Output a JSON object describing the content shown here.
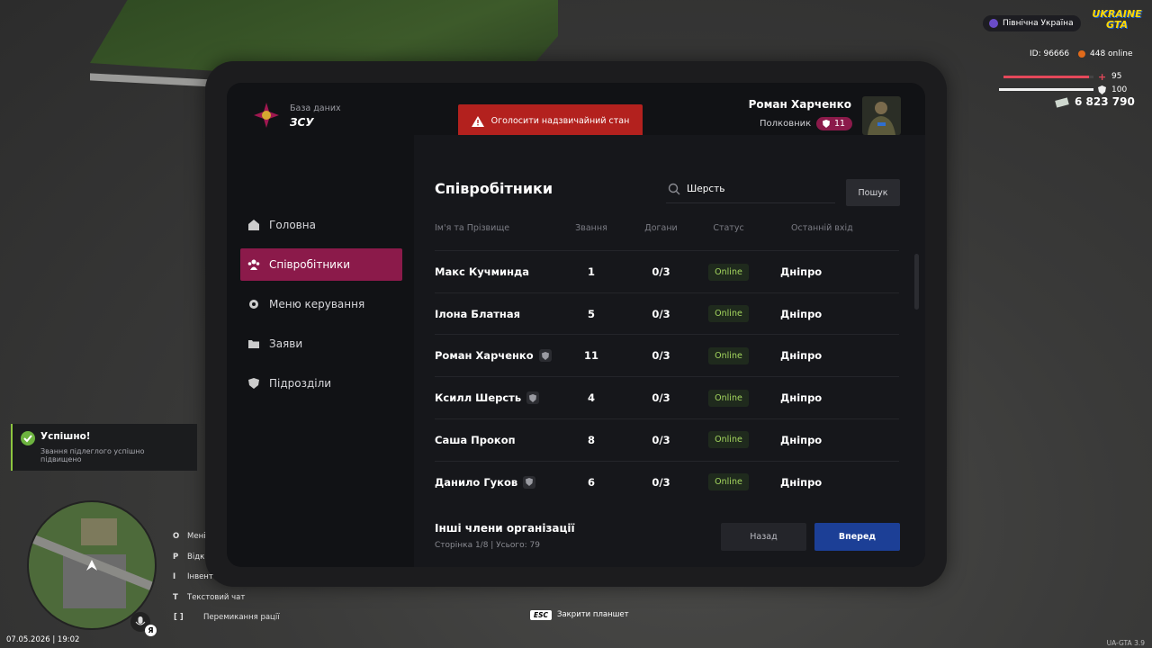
{
  "hud": {
    "region": "Північна Україна",
    "logo_top": "UKRAINE",
    "logo_bottom": "GTA",
    "player_id": "ID: 96666",
    "online": "448 online",
    "health": 95,
    "armor": 100,
    "money": "6 823 790"
  },
  "tablet": {
    "brand_subtitle": "База даних",
    "brand_title": "ЗСУ",
    "emergency_button": "Оголосити надзвичайний стан",
    "user_name": "Роман Харченко",
    "user_rank": "Полковник",
    "user_level": 11,
    "nav": [
      {
        "label": "Головна",
        "active": false
      },
      {
        "label": "Співробітники",
        "active": true
      },
      {
        "label": "Меню керування",
        "active": false
      },
      {
        "label": "Заяви",
        "active": false
      },
      {
        "label": "Підрозділи",
        "active": false
      }
    ],
    "content_title": "Співробітники",
    "search_value": "Шерсть",
    "search_button": "Пошук",
    "columns": [
      "Ім'я та Прізвище",
      "Звання",
      "Догани",
      "Статус",
      "Останній вхід"
    ],
    "rows": [
      {
        "name": "Макс Кучминда",
        "badge": false,
        "rank": 1,
        "reprimands": "0/3",
        "status": "Online",
        "last_login": "Дніпро"
      },
      {
        "name": "Ілона Блатная",
        "badge": false,
        "rank": 5,
        "reprimands": "0/3",
        "status": "Online",
        "last_login": "Дніпро"
      },
      {
        "name": "Роман Харченко",
        "badge": true,
        "rank": 11,
        "reprimands": "0/3",
        "status": "Online",
        "last_login": "Дніпро"
      },
      {
        "name": "Ксилл Шерсть",
        "badge": true,
        "rank": 4,
        "reprimands": "0/3",
        "status": "Online",
        "last_login": "Дніпро"
      },
      {
        "name": "Саша Прокоп",
        "badge": false,
        "rank": 8,
        "reprimands": "0/3",
        "status": "Online",
        "last_login": "Дніпро"
      },
      {
        "name": "Данило Гуков",
        "badge": true,
        "rank": 6,
        "reprimands": "0/3",
        "status": "Online",
        "last_login": "Дніпро"
      }
    ],
    "footer_title": "Інші члени організації",
    "footer_info": "Сторінка 1/8 | Усього: 79",
    "back_button": "Назад",
    "next_button": "Вперед"
  },
  "notification": {
    "title": "Успішно!",
    "message": "Звання підлеглого успішно підвищено"
  },
  "keybinds": [
    {
      "key": "O",
      "label": "Мені"
    },
    {
      "key": "P",
      "label": "Відк"
    },
    {
      "key": "I",
      "label": "Інвент"
    },
    {
      "key": "T",
      "label": "Текстовий чат"
    },
    {
      "key": "[   ]",
      "label": "Перемикання рації"
    }
  ],
  "datetime": "07.05.2026 | 19:02",
  "mic_key": "Я",
  "esc_key": "ESC",
  "esc_label": "Закрити планшет",
  "version": "UA-GTA 3.9"
}
